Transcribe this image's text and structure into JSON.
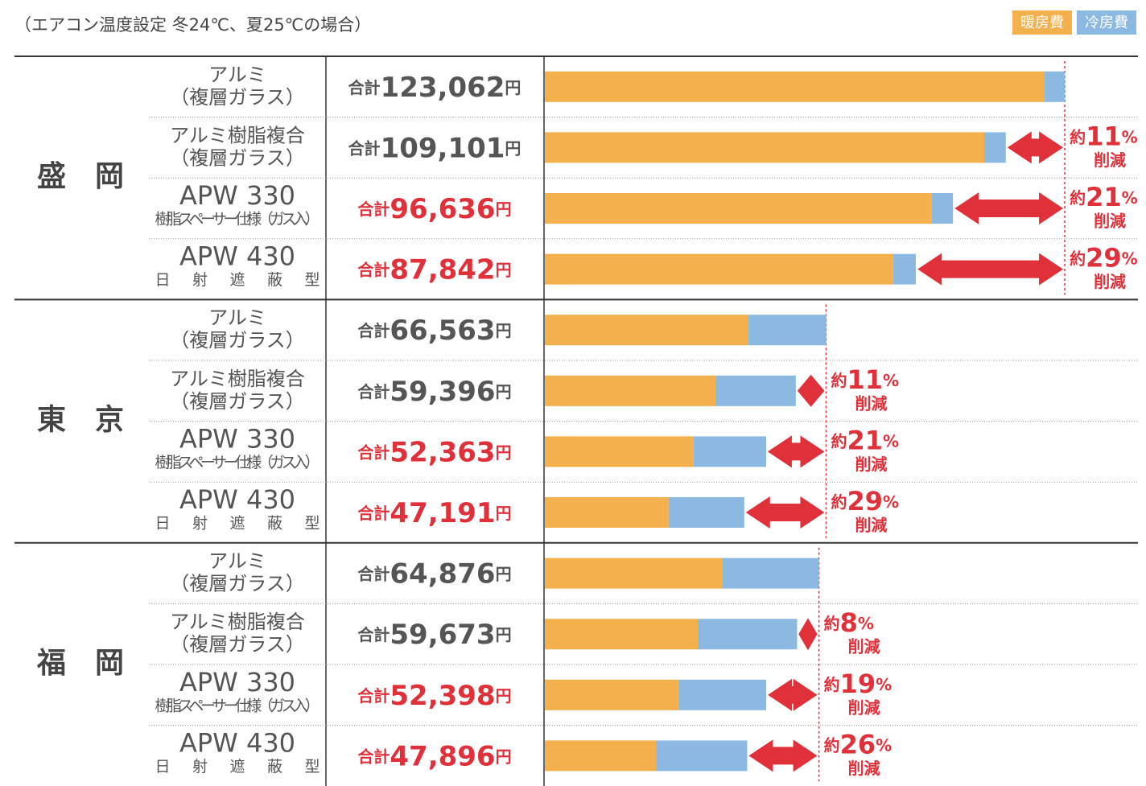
{
  "chart_data": {
    "type": "bar",
    "subtitle": "（エアコン温度設定 冬24℃、夏25℃の場合）",
    "groups": [
      "盛　岡",
      "東　京",
      "福　岡"
    ],
    "categories": [
      [
        "アルミ",
        "（複層ガラス）"
      ],
      [
        "アルミ樹脂複合",
        "（複層ガラス）"
      ],
      [
        "APW 330",
        "樹脂スペーサー仕様（ガス入）"
      ],
      [
        "APW 430",
        "日射遮蔽型"
      ],
      [
        "アルミ",
        "（複層ガラス）"
      ],
      [
        "アルミ樹脂複合",
        "（複層ガラス）"
      ],
      [
        "APW 330",
        "樹脂スペーサー仕様（ガス入）"
      ],
      [
        "APW 430",
        "日射遮蔽型"
      ],
      [
        "アルミ",
        "（複層ガラス）"
      ],
      [
        "アルミ樹脂複合",
        "（複層ガラス）"
      ],
      [
        "APW 330",
        "樹脂スペーサー仕様（ガス入）"
      ],
      [
        "APW 430",
        "日射遮蔽型"
      ]
    ],
    "series": [
      {
        "name": "暖房費",
        "color": "#f5b04e",
        "values": [
          118300,
          104000,
          91600,
          82500,
          48200,
          40400,
          35200,
          29300,
          42100,
          36200,
          31600,
          26300
        ]
      },
      {
        "name": "冷房費",
        "color": "#8bb9e2",
        "values": [
          4800,
          5100,
          5000,
          5300,
          18400,
          19000,
          17200,
          17900,
          22800,
          23500,
          20800,
          21600
        ]
      }
    ],
    "total_prefix": "合計",
    "total_unit": "円",
    "totals": [
      123062,
      109101,
      96636,
      87842,
      66563,
      59396,
      52363,
      47191,
      64876,
      59673,
      52398,
      47896
    ],
    "total_labels": [
      "123,062",
      "109,101",
      "96,636",
      "87,842",
      "66,563",
      "59,396",
      "52,363",
      "47,191",
      "64,876",
      "59,673",
      "52,398",
      "47,896"
    ],
    "reduction_prefix": "約",
    "reduction_unit": "%",
    "reduction_suffix": "削減",
    "reductions": [
      null,
      11,
      21,
      29,
      null,
      11,
      21,
      29,
      null,
      8,
      19,
      26
    ],
    "accent_color": "#e0303a",
    "xlim": [
      0,
      140000
    ]
  }
}
